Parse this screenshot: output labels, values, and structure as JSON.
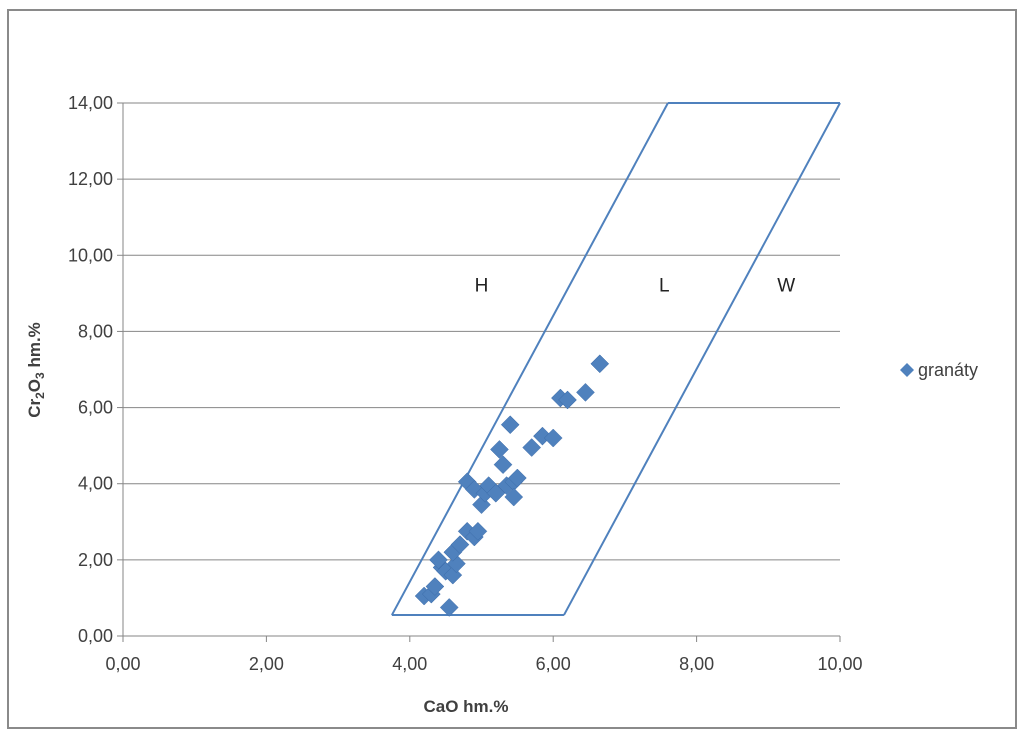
{
  "chart_data": {
    "type": "scatter",
    "xlabel": "CaO hm.%",
    "ylabel_main": "Cr",
    "ylabel_sub1": "2",
    "ylabel_mid": "O",
    "ylabel_sub2": "3",
    "ylabel_tail": " hm.%",
    "xlim": [
      0,
      10
    ],
    "ylim": [
      0,
      14
    ],
    "x_ticks": [
      0,
      2,
      4,
      6,
      8,
      10
    ],
    "y_ticks": [
      0,
      2,
      4,
      6,
      8,
      10,
      12,
      14
    ],
    "x_tick_labels": [
      "0,00",
      "2,00",
      "4,00",
      "6,00",
      "8,00",
      "10,00"
    ],
    "y_tick_labels": [
      "0,00",
      "2,00",
      "4,00",
      "6,00",
      "8,00",
      "10,00",
      "12,00",
      "14,00"
    ],
    "grid": "horizontal",
    "legend_position": "right",
    "series": [
      {
        "name": "granáty",
        "marker": "diamond",
        "color": "#4f81bd",
        "points": [
          [
            4.2,
            1.05
          ],
          [
            4.3,
            1.1
          ],
          [
            4.35,
            1.3
          ],
          [
            4.55,
            0.75
          ],
          [
            4.45,
            1.8
          ],
          [
            4.4,
            2.0
          ],
          [
            4.5,
            1.7
          ],
          [
            4.6,
            1.6
          ],
          [
            4.65,
            1.9
          ],
          [
            4.6,
            2.2
          ],
          [
            4.7,
            2.4
          ],
          [
            4.8,
            2.75
          ],
          [
            4.9,
            2.6
          ],
          [
            4.95,
            2.75
          ],
          [
            4.8,
            4.05
          ],
          [
            4.9,
            3.85
          ],
          [
            5.0,
            3.45
          ],
          [
            5.05,
            3.75
          ],
          [
            5.1,
            3.95
          ],
          [
            5.2,
            3.75
          ],
          [
            5.25,
            4.9
          ],
          [
            5.3,
            4.5
          ],
          [
            5.35,
            3.95
          ],
          [
            5.45,
            4.05
          ],
          [
            5.5,
            4.15
          ],
          [
            5.45,
            3.65
          ],
          [
            5.4,
            5.55
          ],
          [
            5.7,
            4.95
          ],
          [
            5.85,
            5.25
          ],
          [
            6.0,
            5.2
          ],
          [
            6.1,
            6.25
          ],
          [
            6.2,
            6.2
          ],
          [
            6.45,
            6.4
          ],
          [
            6.65,
            7.15
          ]
        ]
      }
    ],
    "boundary_color": "#4f81bd",
    "boundaries": [
      [
        [
          3.75,
          0.55
        ],
        [
          7.6,
          14.0
        ]
      ],
      [
        [
          6.15,
          0.55
        ],
        [
          10.0,
          14.0
        ]
      ],
      [
        [
          3.75,
          0.55
        ],
        [
          6.15,
          0.55
        ]
      ],
      [
        [
          7.6,
          14.0
        ],
        [
          10.0,
          14.0
        ]
      ]
    ],
    "regions": [
      {
        "label": "H",
        "x": 5.0,
        "y": 9.05
      },
      {
        "label": "L",
        "x": 7.55,
        "y": 9.05
      },
      {
        "label": "W",
        "x": 9.25,
        "y": 9.05
      }
    ]
  }
}
